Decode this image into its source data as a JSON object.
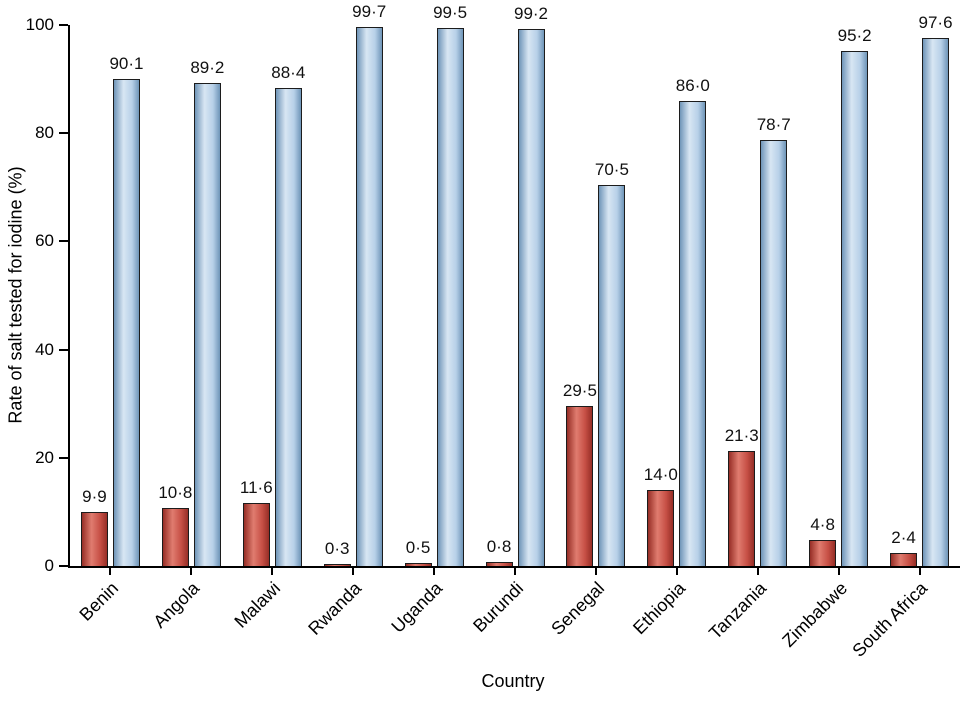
{
  "figure": {
    "background": "#ffffff",
    "axis_color": "#000000",
    "text_color": "#111111"
  },
  "chart_data": {
    "type": "bar",
    "title": "",
    "xlabel": "Country",
    "ylabel": "Rate of salt tested for iodine (%)",
    "ylim": [
      0,
      100
    ],
    "yticks": [
      0,
      20,
      40,
      60,
      80,
      100
    ],
    "grid": false,
    "legend": "none",
    "categories": [
      "Benin",
      "Angola",
      "Malawi",
      "Rwanda",
      "Uganda",
      "Burundi",
      "Senegal",
      "Ethiopia",
      "Tanzania",
      "Zimbabwe",
      "South Africa"
    ],
    "series": [
      {
        "name": "red-series",
        "color": "#c75046",
        "color_light": "#e07c6f",
        "color_edge_dark": "#92niner",
        "values": [
          9.9,
          10.8,
          11.6,
          0.3,
          0.5,
          0.8,
          29.5,
          14.0,
          21.3,
          4.8,
          2.4
        ],
        "labels": [
          "9·9",
          "10·8",
          "11·6",
          "0·3",
          "0·5",
          "0·8",
          "29·5",
          "14·0",
          "21·3",
          "4·8",
          "2·4"
        ]
      },
      {
        "name": "blue-series",
        "color": "#b7d0e8",
        "color_light": "#d8e6f3",
        "color_edge_dark": "#6f95b8",
        "values": [
          90.1,
          89.2,
          88.4,
          99.7,
          99.5,
          99.2,
          70.5,
          86.0,
          78.7,
          95.2,
          97.6
        ],
        "labels": [
          "90·1",
          "89·2",
          "88·4",
          "99·7",
          "99·5",
          "99·2",
          "70·5",
          "86·0",
          "78·7",
          "95·2",
          "97·6"
        ]
      }
    ]
  }
}
